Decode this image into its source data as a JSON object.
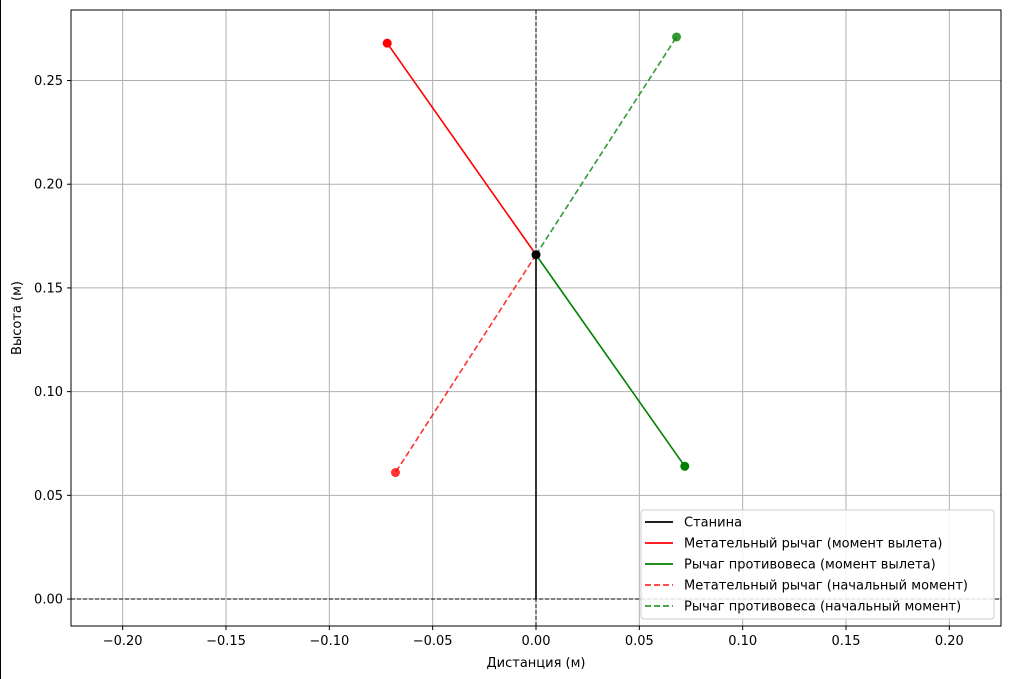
{
  "chart_data": {
    "type": "line",
    "title": "",
    "xlabel": "Дистанция (м)",
    "ylabel": "Высота (м)",
    "xlim": [
      -0.225,
      0.225
    ],
    "ylim": [
      -0.013,
      0.284
    ],
    "xticks": [
      -0.2,
      -0.15,
      -0.1,
      -0.05,
      0.0,
      0.05,
      0.1,
      0.15,
      0.2
    ],
    "xtick_labels": [
      "−0.20",
      "−0.15",
      "−0.10",
      "−0.05",
      "0.00",
      "0.05",
      "0.10",
      "0.15",
      "0.20"
    ],
    "yticks": [
      0.0,
      0.05,
      0.1,
      0.15,
      0.2,
      0.25
    ],
    "ytick_labels": [
      "0.00",
      "0.05",
      "0.10",
      "0.15",
      "0.20",
      "0.25"
    ],
    "grid": true,
    "legend_position": "lower-right",
    "reference_lines": {
      "horizontal_y": 0.0,
      "vertical_x": 0.0,
      "color": "#000000",
      "style": "dashed"
    },
    "pivot": {
      "x": 0.0,
      "y": 0.166,
      "color": "#000000"
    },
    "series": [
      {
        "name": "Станина",
        "color": "#000000",
        "dash": "solid",
        "markers": false,
        "x": [
          0.0,
          0.0
        ],
        "y": [
          0.0,
          0.166
        ]
      },
      {
        "name": "Метательный рычаг (момент вылета)",
        "color": "#ff0000",
        "dash": "solid",
        "markers": true,
        "x": [
          0.0,
          -0.072
        ],
        "y": [
          0.166,
          0.268
        ]
      },
      {
        "name": "Рычаг противовеса (момент вылета)",
        "color": "#008000",
        "dash": "solid",
        "markers": true,
        "x": [
          0.0,
          0.072
        ],
        "y": [
          0.166,
          0.064
        ]
      },
      {
        "name": "Метательный рычаг (начальный момент)",
        "color": "#ff0000",
        "dash": "dashed",
        "markers": true,
        "x": [
          0.0,
          -0.068
        ],
        "y": [
          0.166,
          0.061
        ]
      },
      {
        "name": "Рычаг противовеса (начальный момент)",
        "color": "#008000",
        "dash": "dashed",
        "markers": true,
        "x": [
          0.0,
          0.068
        ],
        "y": [
          0.166,
          0.271
        ]
      }
    ]
  }
}
